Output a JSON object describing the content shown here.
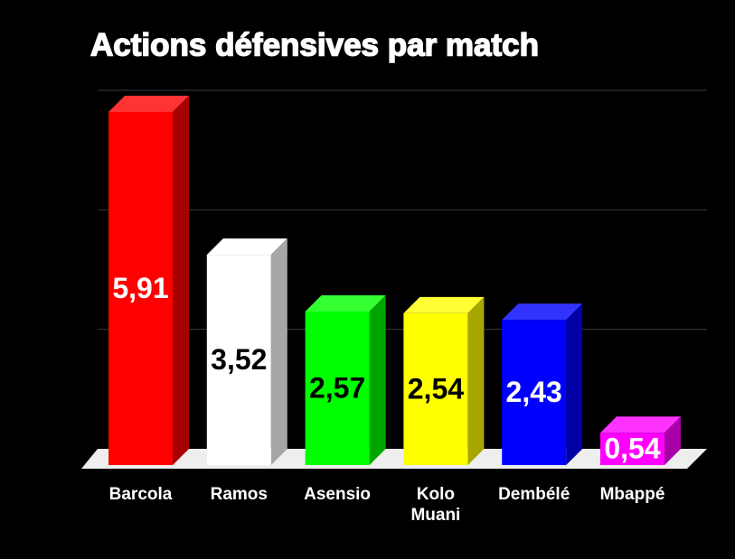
{
  "chart_data": {
    "type": "bar3d",
    "title": "Actions défensives par match",
    "categories": [
      "Barcola",
      "Ramos",
      "Asensio",
      "Kolo Muani",
      "Dembélé",
      "Mbappé"
    ],
    "values": [
      5.91,
      3.52,
      2.57,
      2.54,
      2.43,
      0.54
    ],
    "value_labels": [
      "5,91",
      "3,52",
      "2,57",
      "2,54",
      "2,43",
      "0,54"
    ],
    "colors": [
      "#ff0000",
      "#ffffff",
      "#00ff00",
      "#ffff00",
      "#0000ff",
      "#ff00ff"
    ],
    "value_label_colors": [
      "#ffffff",
      "#000000",
      "#000000",
      "#000000",
      "#ffffff",
      "#ffffff"
    ],
    "ylim": [
      0,
      6
    ],
    "yticks": [
      0,
      2,
      4,
      6
    ],
    "grid": true
  }
}
